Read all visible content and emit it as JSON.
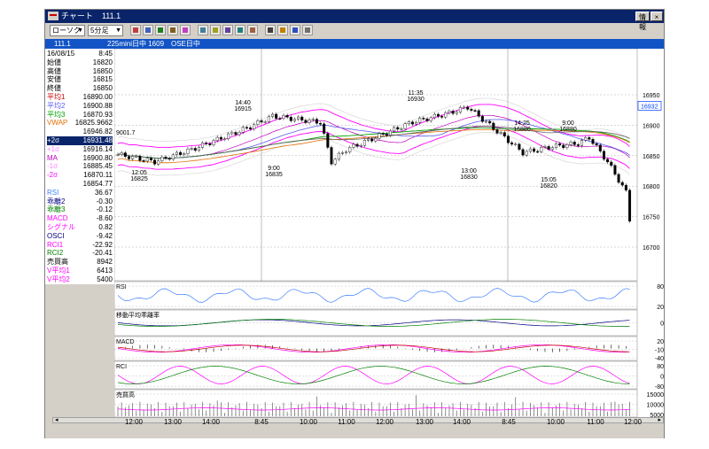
{
  "window": {
    "title": "チャート",
    "symbol": "111.1",
    "help_label": "情報",
    "close_label": "×"
  },
  "toolbar": {
    "chart_type": "ローソク",
    "interval": "5分足",
    "icons": [
      "bar-chart-icon",
      "line-chart-icon",
      "candle-icon",
      "grid-icon",
      "compare-icon",
      "trend-icon",
      "zoom-icon",
      "indicator-icon",
      "list-icon",
      "ruler-icon",
      "hand-icon",
      "pen-icon",
      "search-icon",
      "settings-icon"
    ]
  },
  "header": {
    "symbol": "111.1",
    "market_label": "225mini日中 1609",
    "ose_label": "OSE日中"
  },
  "info_panel": {
    "rows": [
      {
        "label": "16/08/15",
        "value": "8:45",
        "color": "#000000"
      },
      {
        "label": "始値",
        "value": "16820",
        "color": "#000000"
      },
      {
        "label": "高値",
        "value": "16850",
        "color": "#000000"
      },
      {
        "label": "安値",
        "value": "16815",
        "color": "#000000"
      },
      {
        "label": "終値",
        "value": "16850",
        "color": "#000000"
      },
      {
        "label": "平均1",
        "value": "16890.00",
        "color": "#cc0000"
      },
      {
        "label": "平均2",
        "value": "16900.88",
        "color": "#5a5af0"
      },
      {
        "label": "平均3",
        "value": "16870.93",
        "color": "#00a000"
      },
      {
        "label": "VWAP",
        "value": "16825.9662",
        "color": "#e07000"
      },
      {
        "label": "",
        "value": "16946.82",
        "color": "#000000"
      },
      {
        "label": "+2σ",
        "value": "16931.48",
        "color": "#ff00ff"
      },
      {
        "label": "+1σ",
        "value": "16916.14",
        "color": "#ff80ff"
      },
      {
        "label": "MA",
        "value": "16900.80",
        "color": "#c000c0"
      },
      {
        "label": "-1σ",
        "value": "16885.45",
        "color": "#ff80ff"
      },
      {
        "label": "-2σ",
        "value": "16870.11",
        "color": "#ff00ff"
      },
      {
        "label": "",
        "value": "16854.77",
        "color": "#000000"
      },
      {
        "label": "RSI",
        "value": "36.67",
        "color": "#4080ff"
      },
      {
        "label": "乖離2",
        "value": "-0.30",
        "color": "#000080"
      },
      {
        "label": "乖離3",
        "value": "-0.12",
        "color": "#008000"
      },
      {
        "label": "MACD",
        "value": "-8.60",
        "color": "#ff00ff"
      },
      {
        "label": "シグナル",
        "value": "0.82",
        "color": "#ff00ff"
      },
      {
        "label": "OSCI",
        "value": "-9.42",
        "color": "#000080"
      },
      {
        "label": "RCI1",
        "value": "-22.92",
        "color": "#ff00ff"
      },
      {
        "label": "RCI2",
        "value": "-20.41",
        "color": "#008000"
      },
      {
        "label": "売買高",
        "value": "8942",
        "color": "#000000"
      },
      {
        "label": "V平均1",
        "value": "6413",
        "color": "#ff00ff"
      },
      {
        "label": "V平均2",
        "value": "5400",
        "color": "#ff00ff"
      }
    ]
  },
  "main_chart": {
    "price_ticks": [
      "16950",
      "16900",
      "16850",
      "16800",
      "16750",
      "16700"
    ],
    "current_price": "16932",
    "annotations": [
      {
        "time": "14:40",
        "price": "16915"
      },
      {
        "time": "11:35",
        "price": "16930"
      },
      {
        "time": "14:25",
        "price": "16880"
      },
      {
        "time": "9:00",
        "price": "16880"
      },
      {
        "time": "12:05",
        "price": "16825"
      },
      {
        "time": "9:00",
        "price": "16835"
      },
      {
        "time": "13:00",
        "price": "16830"
      },
      {
        "time": "15:05",
        "price": "16820"
      }
    ],
    "left_price_note": "9001.7"
  },
  "sub_charts": [
    {
      "title": "RSI",
      "ticks": [
        "80",
        "20"
      ]
    },
    {
      "title": "移動平均乖離率",
      "ticks": [
        "0"
      ]
    },
    {
      "title": "MACD",
      "ticks": [
        "20",
        "-10",
        "-40"
      ]
    },
    {
      "title": "RCI",
      "ticks": [
        "80",
        "0",
        "-80"
      ]
    },
    {
      "title": "売買高",
      "ticks": [
        "15000",
        "10000",
        "5000"
      ]
    }
  ],
  "x_axis": {
    "labels": [
      "12:00",
      "13:00",
      "14:00",
      "8:45",
      "10:00",
      "11:00",
      "12:00",
      "13:00",
      "14:00",
      "8:45",
      "10:00",
      "11:00",
      "12:00"
    ]
  },
  "colors": {
    "title_bar": "#0a246a",
    "header_bar": "#1254c6",
    "bollinger": "#ff00ff",
    "ma1": "#cc0000",
    "ma2": "#5a5af0",
    "ma3": "#00a000",
    "vwap": "#e07000"
  }
}
